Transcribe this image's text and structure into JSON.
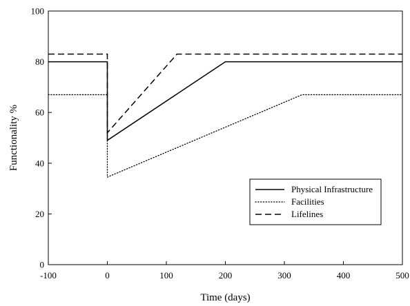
{
  "chart_data": {
    "type": "line",
    "xlabel": "Time (days)",
    "ylabel": "Functionality %",
    "xlim": [
      -100,
      500
    ],
    "ylim": [
      0,
      100
    ],
    "xticks": [
      -100,
      0,
      100,
      200,
      300,
      400,
      500
    ],
    "yticks": [
      0,
      20,
      40,
      60,
      80,
      100
    ],
    "grid": false,
    "legend_position": "bottom-right",
    "series": [
      {
        "name": "Physical Infrastructure",
        "style": "solid",
        "points": [
          [
            -100,
            80
          ],
          [
            0,
            80
          ],
          [
            0,
            49
          ],
          [
            200,
            80
          ],
          [
            500,
            80
          ]
        ]
      },
      {
        "name": "Facilities",
        "style": "dotted",
        "points": [
          [
            -100,
            67
          ],
          [
            0,
            67
          ],
          [
            0,
            34.5
          ],
          [
            330,
            67
          ],
          [
            500,
            67
          ]
        ]
      },
      {
        "name": "Lifelines",
        "style": "dashed",
        "points": [
          [
            -100,
            83
          ],
          [
            0,
            83
          ],
          [
            0,
            52
          ],
          [
            118,
            83
          ],
          [
            500,
            83
          ]
        ]
      }
    ]
  }
}
